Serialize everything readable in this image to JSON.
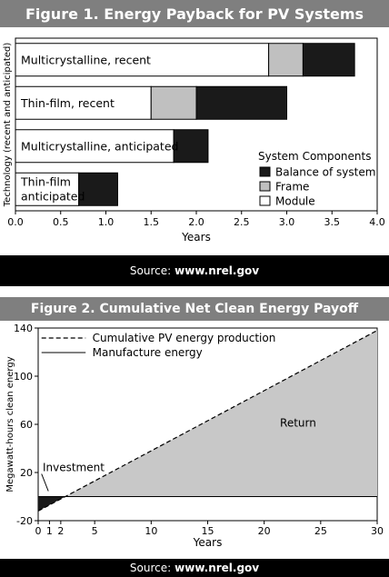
{
  "figure1": {
    "title": "Figure 1. Energy Payback for PV Systems",
    "source_label": "Source:",
    "source_site": "www.nrel.gov"
  },
  "figure2": {
    "title": "Figure 2. Cumulative Net Clean Energy Payoff",
    "source_label": "Source:",
    "source_site": "www.nrel.gov"
  },
  "chart_data": [
    {
      "type": "bar",
      "orientation": "horizontal",
      "stacked": true,
      "title": "Figure 1. Energy Payback for PV Systems",
      "xlabel": "Years",
      "ylabel": "Technology (recent and anticipated)",
      "xlim": [
        0,
        4
      ],
      "xticks": [
        "0.0",
        "0.5",
        "1.0",
        "1.5",
        "2.0",
        "2.5",
        "3.0",
        "3.5",
        "4.0"
      ],
      "categories": [
        "Multicrystalline, recent",
        "Thin-film, recent",
        "Multicrystalline, anticipated",
        "Thin-film anticipated"
      ],
      "series": [
        {
          "name": "Module",
          "color": "#ffffff",
          "values": [
            2.8,
            1.5,
            1.75,
            0.7
          ]
        },
        {
          "name": "Frame",
          "color": "#c0c0c0",
          "values": [
            0.38,
            0.5,
            0,
            0
          ]
        },
        {
          "name": "Balance of system",
          "color": "#1a1a1a",
          "values": [
            0.57,
            1.0,
            0.38,
            0.43
          ]
        }
      ],
      "legend_title": "System Components",
      "legend_order": [
        "Balance of system",
        "Frame",
        "Module"
      ],
      "legend_position": "bottom-right",
      "grid": false
    },
    {
      "type": "area",
      "title": "Figure 2. Cumulative Net Clean Energy Payoff",
      "xlabel": "Years",
      "ylabel": "Megawatt-hours clean energy",
      "xlim": [
        0,
        30
      ],
      "ylim": [
        -20,
        140
      ],
      "xticks": [
        0,
        1,
        2,
        5,
        10,
        15,
        20,
        25,
        30
      ],
      "yticks": [
        -20,
        20,
        60,
        100,
        140
      ],
      "series": [
        {
          "name": "Cumulative PV energy production",
          "style": "dashed",
          "x": [
            0,
            30
          ],
          "y": [
            -12,
            138
          ]
        },
        {
          "name": "Manufacture energy",
          "style": "solid",
          "x": [
            0,
            30
          ],
          "y": [
            0,
            0
          ]
        }
      ],
      "annotations": [
        "Investment",
        "Return"
      ],
      "fill_color": "#c8c8c8",
      "investment_color": "#1a1a1a",
      "payback_year": 2.4,
      "legend_position": "top-left",
      "grid": false
    }
  ]
}
